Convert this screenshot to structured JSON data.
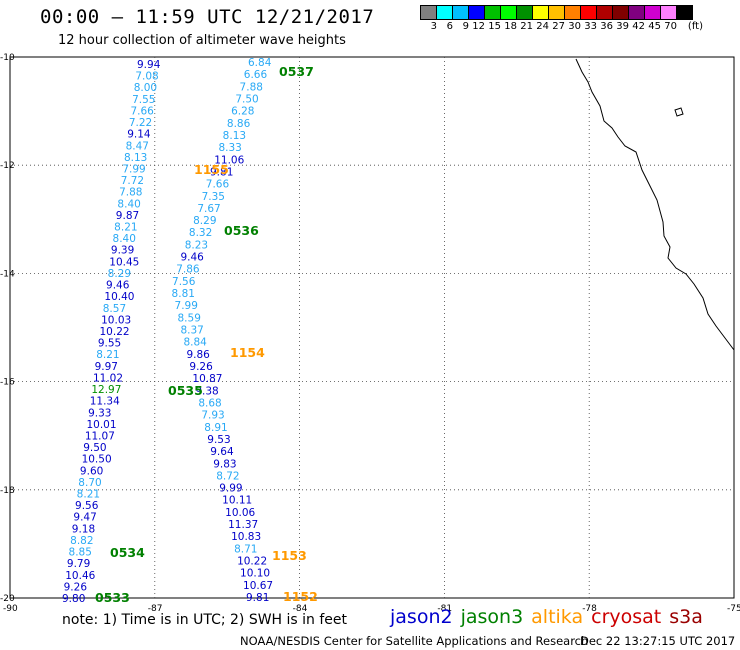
{
  "header": {
    "title": "00:00 – 11:59 UTC 12/21/2017",
    "subtitle": "12 hour collection of altimeter wave heights"
  },
  "colorbar": {
    "colors": [
      "#808080",
      "#00ffff",
      "#00bfff",
      "#0000ff",
      "#00c000",
      "#00ff00",
      "#009000",
      "#ffff00",
      "#ffc000",
      "#ff8000",
      "#ff0000",
      "#b00000",
      "#800000",
      "#800080",
      "#d000d0",
      "#ff80ff",
      "#000000"
    ],
    "labels": [
      "3",
      "6",
      "9",
      "12",
      "15",
      "18",
      "21",
      "24",
      "27",
      "30",
      "33",
      "36",
      "39",
      "42",
      "45",
      "70"
    ],
    "unit": "(ft)"
  },
  "axes": {
    "lat_labels": [
      "-10",
      "-12",
      "-14",
      "-16",
      "-18",
      "-20"
    ],
    "lon_labels": [
      "-90",
      "-87",
      "-84",
      "-81",
      "-78",
      "-75"
    ]
  },
  "passes": [
    {
      "label": "0537"
    },
    {
      "label": "1155"
    },
    {
      "label": "0536"
    },
    {
      "label": "1154"
    },
    {
      "label": "0535"
    },
    {
      "label": "0534"
    },
    {
      "label": "1153"
    },
    {
      "label": "0533"
    },
    {
      "label": "1152"
    }
  ],
  "values": {
    "track_a": [
      "9.94",
      "7.08",
      "8.00",
      "7.55",
      "7.66",
      "7.22",
      "9.14",
      "8.47",
      "8.13",
      "7.99",
      "7.72",
      "7.88",
      "8.40",
      "9.87",
      "8.21",
      "8.40",
      "9.39",
      "10.45",
      "8.29",
      "9.46",
      "10.40",
      "8.57",
      "10.03",
      "10.22",
      "9.55",
      "8.21",
      "9.97",
      "11.02",
      "12.97",
      "11.34",
      "9.33",
      "10.01",
      "11.07",
      "9.50",
      "10.50",
      "9.60",
      "8.70",
      "8.21",
      "9.56",
      "9.47",
      "9.18",
      "8.82",
      "8.85",
      "9.79",
      "10.46",
      "9.26",
      "9.80"
    ],
    "track_b": [
      "6.84",
      "6.66",
      "7.88",
      "7.50",
      "6.28",
      "8.86",
      "8.13",
      "8.33",
      "11.06",
      "9.81",
      "7.66",
      "7.35",
      "7.67",
      "8.29",
      "8.32",
      "8.23",
      "9.46",
      "7.86",
      "7.56",
      "8.81",
      "7.99",
      "8.59",
      "8.37",
      "8.84",
      "9.86",
      "9.26",
      "10.87",
      "9.38",
      "8.68",
      "7.93",
      "8.91",
      "9.53",
      "9.64",
      "9.83",
      "8.72",
      "9.99",
      "10.11",
      "10.06",
      "11.37",
      "10.83",
      "8.71",
      "10.22",
      "10.10",
      "10.67",
      "9.81"
    ]
  },
  "legend": {
    "items": [
      {
        "name": "jason2",
        "color": "#0000cc"
      },
      {
        "name": "jason3",
        "color": "#008000"
      },
      {
        "name": "altika",
        "color": "#ff9900"
      },
      {
        "name": "cryosat",
        "color": "#cc0000"
      },
      {
        "name": "s3a",
        "color": "#990000"
      }
    ]
  },
  "footer": {
    "note": "note: 1) Time is in UTC; 2) SWH is in feet",
    "credit": "NOAA/NESDIS Center for Satellite Applications and Research",
    "stamp": "Dec 22 13:27:15 UTC 2017"
  }
}
